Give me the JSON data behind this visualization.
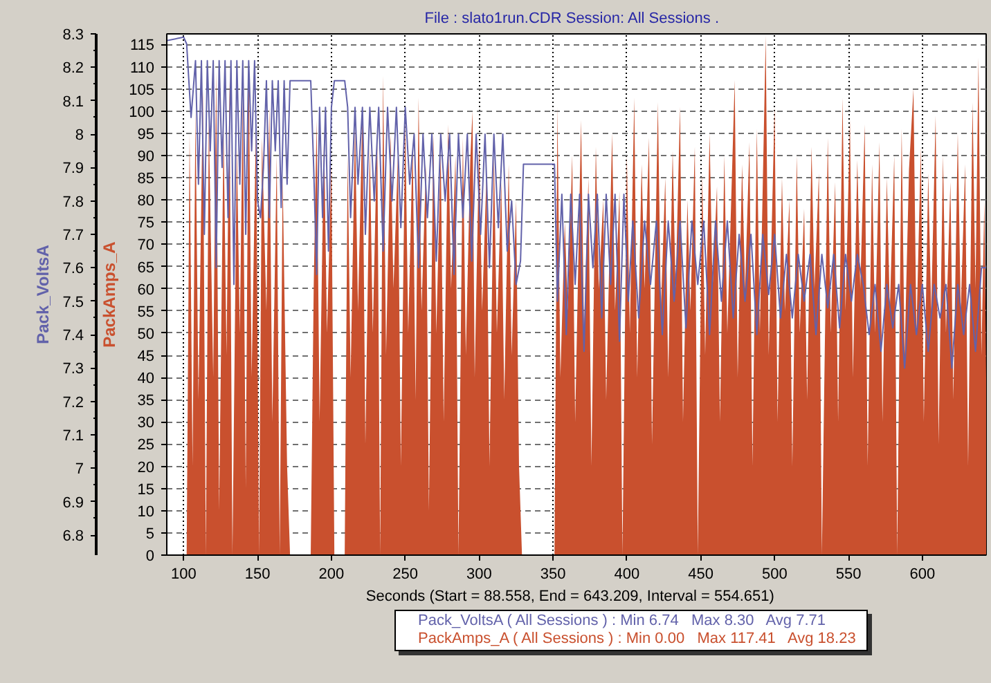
{
  "chart_data": {
    "type": "line",
    "title": "File : slato1run.CDR   Session: All Sessions .",
    "xlabel": "Seconds (Start = 88.558,  End = 643.209,  Interval =  554.651)",
    "ylabel": "PackAmps_A",
    "y2label": "Pack_VoltsA",
    "xlim": [
      88.558,
      643.209
    ],
    "xticks": [
      100,
      150,
      200,
      250,
      300,
      350,
      400,
      450,
      500,
      550,
      600
    ],
    "ylim": [
      0,
      117.41
    ],
    "yticks": [
      0,
      5,
      10,
      15,
      20,
      25,
      30,
      35,
      40,
      45,
      50,
      55,
      60,
      65,
      70,
      75,
      80,
      85,
      90,
      95,
      100,
      105,
      110,
      115
    ],
    "y2lim": [
      6.74,
      8.3
    ],
    "y2ticks": [
      6.8,
      6.9,
      7,
      7.1,
      7.2,
      7.3,
      7.4,
      7.5,
      7.6,
      7.7,
      7.8,
      7.9,
      8,
      8.1,
      8.2,
      8.3
    ],
    "grid": true,
    "legend": "bottom",
    "series": [
      {
        "name": "Pack_VoltsA ( All Sessions ) : Min 6.74   Max 8.30   Avg 7.71",
        "axis": "y2",
        "color": "#6262aa",
        "x": [
          88.558,
          100,
          102,
          105,
          108,
          110,
          112,
          114,
          116,
          118,
          120,
          122,
          124,
          126,
          128,
          130,
          132,
          134,
          136,
          138,
          140,
          142,
          144,
          146,
          148,
          150,
          152,
          154,
          156,
          158,
          160,
          162,
          164,
          166,
          168,
          170,
          172,
          186,
          188,
          190,
          192,
          194,
          196,
          198,
          200,
          202,
          209,
          211,
          213,
          216,
          218,
          221,
          223,
          226,
          229,
          232,
          235,
          238,
          241,
          244,
          247,
          250,
          253,
          256,
          259,
          262,
          265,
          268,
          271,
          274,
          277,
          280,
          283,
          286,
          289,
          292,
          295,
          298,
          301,
          304,
          307,
          310,
          313,
          316,
          319,
          322,
          325,
          328,
          330,
          351,
          353,
          356,
          359,
          362,
          365,
          368,
          371,
          374,
          377,
          380,
          383,
          386,
          389,
          392,
          395,
          398,
          401,
          404,
          408,
          412,
          416,
          420,
          424,
          428,
          432,
          436,
          440,
          444,
          448,
          452,
          456,
          460,
          464,
          468,
          472,
          476,
          480,
          484,
          488,
          492,
          496,
          500,
          504,
          508,
          512,
          516,
          520,
          524,
          528,
          532,
          536,
          540,
          544,
          548,
          552,
          556,
          560,
          564,
          568,
          572,
          576,
          580,
          584,
          588,
          592,
          596,
          600,
          604,
          608,
          612,
          616,
          620,
          624,
          628,
          632,
          636,
          640,
          643.209
        ],
        "values": [
          8.28,
          8.29,
          8.27,
          8.05,
          8.22,
          7.85,
          8.22,
          7.7,
          8.22,
          7.95,
          8.22,
          7.6,
          8.22,
          7.9,
          8.22,
          7.75,
          8.22,
          7.55,
          8.22,
          7.85,
          8.22,
          7.7,
          8.22,
          7.95,
          8.22,
          7.8,
          7.75,
          7.9,
          8.16,
          7.75,
          8.16,
          7.95,
          8.16,
          7.78,
          8.16,
          7.85,
          8.16,
          8.16,
          7.9,
          7.58,
          8.08,
          7.75,
          8.08,
          7.65,
          8.08,
          8.16,
          8.16,
          8.08,
          7.75,
          8.08,
          7.85,
          8.08,
          7.7,
          8.08,
          7.8,
          8.08,
          7.65,
          8.08,
          7.8,
          8.08,
          7.72,
          8.08,
          7.85,
          8.0,
          7.6,
          8.0,
          7.75,
          8.0,
          7.62,
          8.0,
          7.8,
          8.0,
          7.58,
          8.0,
          7.75,
          8.0,
          7.62,
          8.0,
          7.7,
          8.0,
          7.6,
          8.0,
          7.72,
          8.0,
          7.65,
          7.8,
          7.55,
          7.62,
          7.91,
          7.91,
          7.5,
          7.82,
          7.4,
          7.82,
          7.55,
          7.82,
          7.35,
          7.82,
          7.6,
          7.82,
          7.45,
          7.82,
          7.55,
          7.82,
          7.38,
          7.82,
          7.5,
          7.74,
          7.45,
          7.74,
          7.55,
          7.74,
          7.4,
          7.74,
          7.5,
          7.74,
          7.42,
          7.74,
          7.55,
          7.74,
          7.4,
          7.74,
          7.5,
          7.74,
          7.45,
          7.7,
          7.5,
          7.7,
          7.4,
          7.7,
          7.52,
          7.7,
          7.45,
          7.64,
          7.45,
          7.64,
          7.5,
          7.64,
          7.4,
          7.64,
          7.48,
          7.64,
          7.42,
          7.64,
          7.5,
          7.64,
          7.55,
          7.4,
          7.55,
          7.35,
          7.55,
          7.42,
          7.55,
          7.3,
          7.55,
          7.4,
          7.55,
          7.35,
          7.55,
          7.45,
          7.55,
          7.3,
          7.55,
          7.4,
          7.55,
          7.35,
          7.6,
          7.6
        ]
      },
      {
        "name": "PackAmps_A ( All Sessions ) : Min 0.00   Max 117.41   Avg 18.23",
        "type": "area",
        "color": "#c9502e",
        "x": [
          88.558,
          102,
          104,
          106,
          108,
          110,
          113,
          115,
          117,
          120,
          122,
          124,
          127,
          129,
          131,
          133,
          136,
          138,
          140,
          142,
          144,
          146,
          149,
          151,
          153,
          156,
          158,
          160,
          163,
          165,
          167,
          170,
          172,
          186,
          188,
          190,
          192,
          195,
          197,
          200,
          202,
          209,
          211,
          213,
          216,
          218,
          221,
          223,
          226,
          228,
          231,
          233,
          235,
          237,
          240,
          242,
          245,
          247,
          250,
          252,
          255,
          257,
          259,
          261,
          264,
          266,
          269,
          271,
          274,
          276,
          279,
          281,
          284,
          286,
          289,
          291,
          294,
          295.5,
          297,
          300,
          302,
          305,
          307,
          310,
          312,
          315,
          317,
          320,
          322,
          325,
          327,
          329,
          351,
          353,
          355,
          358,
          360,
          363,
          365,
          369,
          371,
          374,
          376,
          379,
          381,
          384,
          386,
          390,
          392,
          395,
          397,
          400,
          402,
          405,
          407,
          410,
          412,
          415,
          417,
          421,
          423,
          426,
          428,
          431,
          433,
          436,
          438,
          441,
          443,
          446,
          448,
          451,
          453,
          456,
          458,
          461,
          463,
          466,
          468,
          473,
          475,
          478,
          480,
          483,
          485,
          488,
          490,
          494,
          496,
          500,
          502,
          505,
          507,
          510,
          512,
          515,
          517,
          520,
          522,
          525,
          527,
          530,
          532,
          536,
          538,
          541,
          543,
          546,
          548,
          551,
          553,
          556,
          558,
          561,
          563,
          566,
          568,
          571,
          573,
          576,
          578,
          581,
          583,
          586,
          588,
          591,
          594,
          596,
          599,
          601,
          604,
          606,
          609,
          611,
          614,
          616,
          619,
          621,
          624,
          626,
          629,
          631,
          634,
          636,
          638,
          640,
          642,
          643.209
        ],
        "values": [
          0,
          0,
          95,
          20,
          100,
          35,
          105,
          0,
          98,
          40,
          109,
          10,
          96,
          45,
          107,
          0,
          92,
          50,
          103,
          15,
          112,
          40,
          99,
          0,
          94,
          55,
          101,
          30,
          90,
          0,
          85,
          20,
          0,
          0,
          60,
          98,
          30,
          95,
          50,
          88,
          0,
          0,
          90,
          40,
          97,
          55,
          100,
          25,
          92,
          50,
          96,
          0,
          108,
          45,
          95,
          60,
          90,
          20,
          98,
          50,
          93,
          35,
          103,
          55,
          88,
          10,
          95,
          50,
          91,
          30,
          97,
          60,
          90,
          0,
          94,
          45,
          89,
          100,
          40,
          93,
          55,
          86,
          20,
          90,
          50,
          84,
          35,
          88,
          45,
          80,
          20,
          0,
          0,
          101,
          40,
          75,
          55,
          90,
          30,
          98,
          50,
          85,
          20,
          92,
          60,
          80,
          35,
          95,
          55,
          82,
          0,
          90,
          50,
          103,
          40,
          88,
          60,
          94,
          25,
          102,
          55,
          85,
          40,
          91,
          60,
          101,
          30,
          80,
          55,
          92,
          0,
          86,
          45,
          95,
          60,
          83,
          30,
          90,
          50,
          107,
          40,
          88,
          60,
          93,
          20,
          96,
          50,
          117,
          45,
          101,
          30,
          85,
          55,
          80,
          20,
          90,
          50,
          78,
          35,
          92,
          60,
          86,
          0,
          94,
          50,
          84,
          30,
          103,
          55,
          98,
          40,
          89,
          60,
          97,
          20,
          88,
          50,
          93,
          30,
          85,
          55,
          90,
          0,
          96,
          45,
          87,
          105,
          50,
          92,
          30,
          86,
          55,
          99,
          25,
          90,
          50,
          84,
          35,
          95,
          55,
          88,
          20,
          102,
          60,
          112,
          45,
          80,
          40
        ]
      }
    ]
  }
}
